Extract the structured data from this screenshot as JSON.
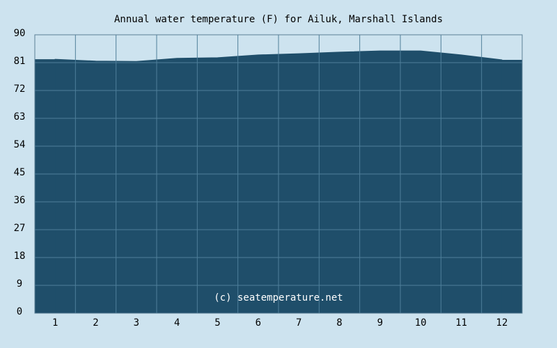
{
  "chart_data": {
    "type": "area",
    "title": "Annual water temperature (F) for Ailuk, Marshall Islands",
    "annotation": "(c) seatemperature.net",
    "categories": [
      "1",
      "2",
      "3",
      "4",
      "5",
      "6",
      "7",
      "8",
      "9",
      "10",
      "11",
      "12"
    ],
    "values": [
      82.1,
      81.5,
      81.4,
      82.4,
      82.6,
      83.5,
      83.9,
      84.4,
      84.8,
      84.8,
      83.5,
      81.9
    ],
    "color": "#1f4e6a",
    "ylim": [
      0,
      90
    ],
    "yticks": [
      0,
      9,
      18,
      27,
      36,
      45,
      54,
      63,
      72,
      81,
      90
    ],
    "grid": true
  }
}
